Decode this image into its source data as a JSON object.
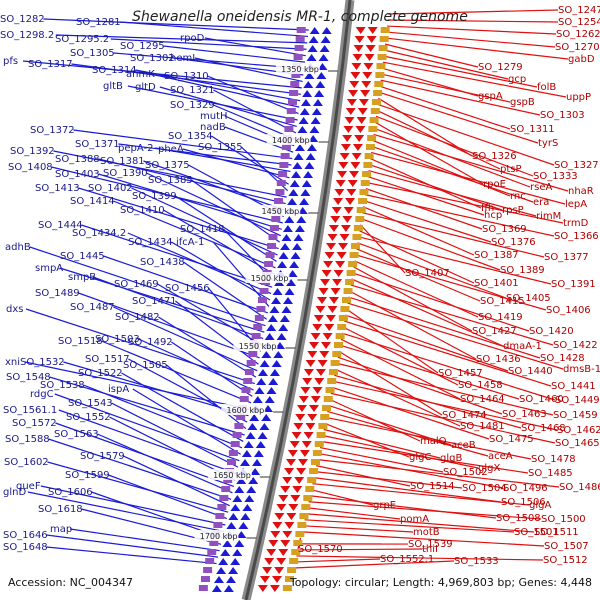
{
  "title": "Shewanella oneidensis MR-1, complete genome",
  "footer": {
    "accession": "Accession: NC_004347",
    "topology": "Topology: circular; Length: 4,969,803 bp; Genes: 4,448"
  },
  "colors": {
    "forward": "#1b1bd6",
    "reverse": "#e01010",
    "backbone": "#555555"
  },
  "kbp_ticks": [
    "1350 kbp",
    "1400 kbp",
    "1450 kbp",
    "1500 kbp",
    "1550 kbp",
    "1600 kbp",
    "1650 kbp",
    "1700 kbp"
  ],
  "left_labels": [
    "SO_1282",
    "SO_1281",
    "SO_1298.2",
    "SO_1295.2",
    "rpoD",
    "SO_1295",
    "SO_1305",
    "SO_1302",
    "hemL",
    "pfs",
    "SO_1317",
    "SO_1314",
    "anmK",
    "SO_1310",
    "gltB",
    "gltD",
    "SO_1321",
    "SO_1329",
    "mutH",
    "nadB",
    "SO_1372",
    "SO_1371",
    "pepA-2",
    "pheA",
    "SO_1354",
    "SO_1355",
    "SO_1392",
    "SO_1388",
    "SO_1381",
    "SO_1375",
    "SO_1408",
    "SO_1403",
    "SO_1390",
    "SO_1385",
    "SO_1413",
    "SO_1402",
    "SO_1399",
    "SO_1414",
    "SO_1410",
    "SO_1418",
    "SO_1444",
    "SO_1434.2",
    "SO_1434",
    "ifcA-1",
    "SO_1445",
    "SO_1438",
    "adhB",
    "smpA",
    "smpB",
    "SO_1469",
    "SO_1456",
    "SO_1489",
    "SO_1471",
    "SO_1487",
    "SO_1482",
    "dxs",
    "SO_1503",
    "SO_1492",
    "SO_1518",
    "xni",
    "SO_1532",
    "SO_1517",
    "SO_1505",
    "SO_1548",
    "SO_1522",
    "SO_1538",
    "ispA",
    "rdgC",
    "SO_1543",
    "SO_1561.1",
    "SO_1552",
    "SO_1572",
    "SO_1563",
    "SO_1588",
    "SO_1579",
    "SO_1602",
    "SO_1599",
    "queF",
    "glnD",
    "SO_1606",
    "SO_1618",
    "map",
    "SO_1646",
    "SO_1648"
  ],
  "right_labels": [
    "SO_1247",
    "SO_1254",
    "SO_1262",
    "SO_1270",
    "gabD",
    "SO_1279",
    "gcp",
    "folB",
    "uppP",
    "gspA",
    "gspB",
    "SO_1303",
    "SO_1311",
    "tyrS",
    "SO_1326",
    "SO_1327",
    "ptsP",
    "SO_1333",
    "rpoE",
    "rseA",
    "nhaR",
    "rnc",
    "era",
    "lepA",
    "ffh",
    "rpsP",
    "rimM",
    "hcp",
    "trmD",
    "SO_1369",
    "SO_1366",
    "SO_1376",
    "SO_1387",
    "SO_1377",
    "SO_1389",
    "SO_1407",
    "SO_1401",
    "SO_1391",
    "SO_1405",
    "SO_1415",
    "SO_1406",
    "SO_1419",
    "SO_1427",
    "SO_1420",
    "dmaA-1",
    "SO_1422",
    "SO_1436",
    "SO_1428",
    "dmsB-1",
    "SO_1457",
    "SO_1440",
    "SO_1441",
    "SO_1458",
    "SO_1449",
    "SO_1464",
    "SO_1460",
    "SO_1474",
    "SO_1463",
    "SO_1459",
    "SO_1481",
    "SO_1468",
    "SO_1462",
    "SO_1475",
    "SO_1465",
    "malQ",
    "aceB",
    "aceA",
    "SO_1478",
    "glgC",
    "glgB",
    "glgX",
    "SO_1485",
    "SO_1502",
    "SO_1496",
    "SO_1486",
    "SO_1514",
    "SO_1504",
    "SO_1506",
    "glgA",
    "grpE",
    "SO_1508",
    "SO_1500",
    "pomA",
    "SO_1511",
    "SO_1501",
    "motB",
    "SO_1507",
    "SO_1570",
    "SO_1539",
    "thiI",
    "SO_1512",
    "SO_1552.1",
    "SO_1533"
  ]
}
